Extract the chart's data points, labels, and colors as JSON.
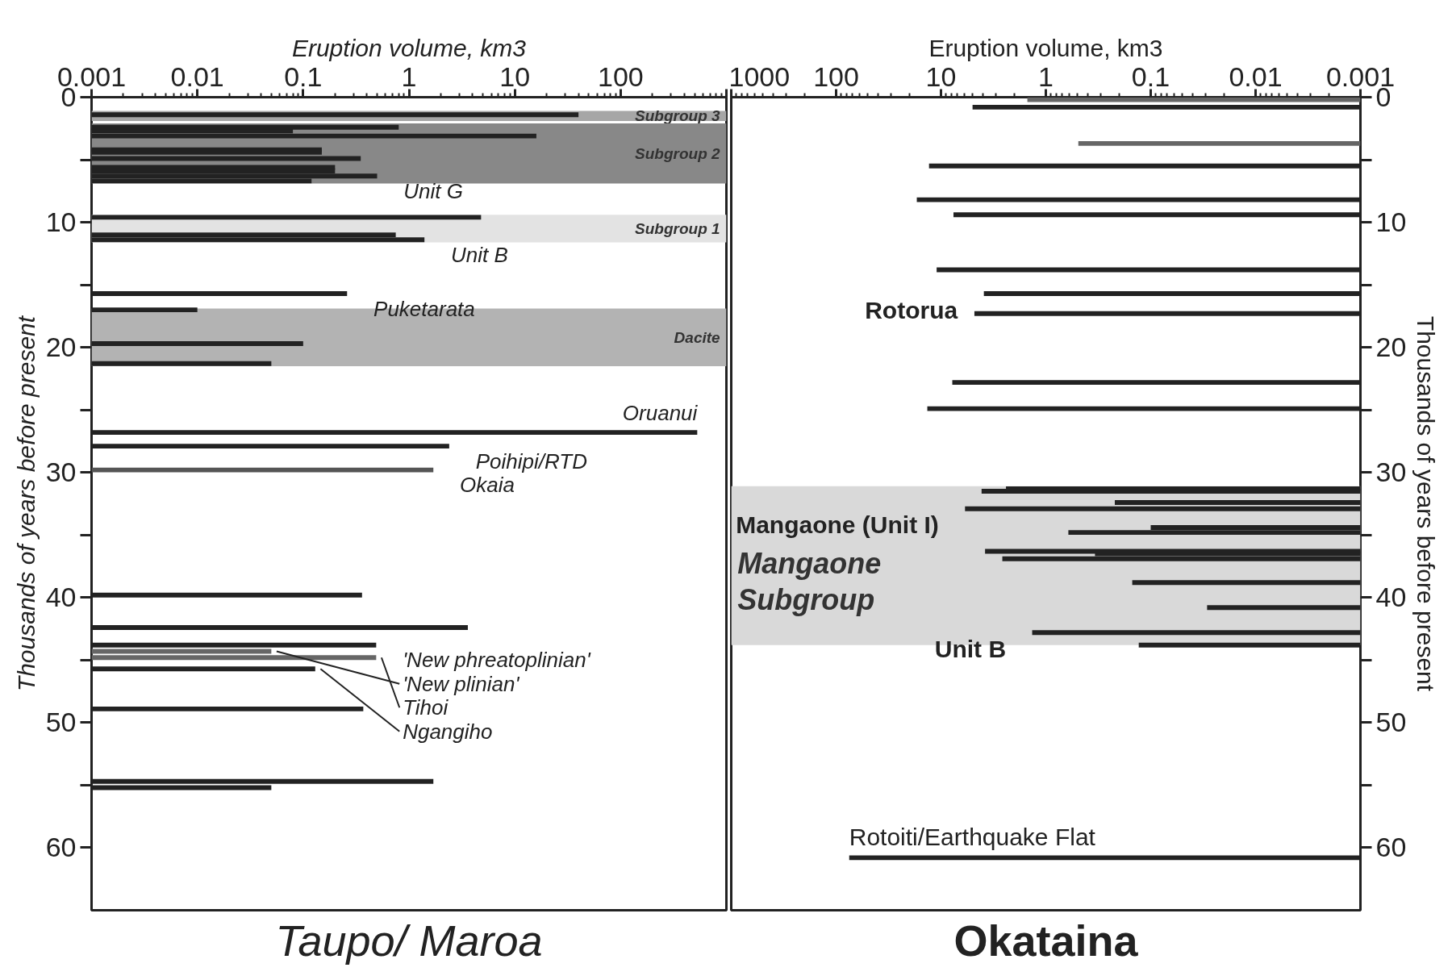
{
  "chart_data": [
    {
      "type": "bar",
      "orientation": "horizontal",
      "log": "x",
      "title": "Taupo/ Maroa",
      "xlabel": "Eruption volume, km3",
      "ylabel": "Thousands of years before present",
      "x": [
        1.4,
        2.4,
        2.7,
        3.1,
        4.2,
        4.4,
        4.9,
        5.6,
        5.9,
        6.3,
        6.7,
        9.6,
        11.0,
        11.4,
        15.7,
        17.0,
        19.7,
        21.3,
        26.8,
        27.9,
        29.8,
        39.8,
        42.4,
        43.8,
        44.3,
        44.8,
        45.7,
        48.9,
        54.7,
        55.2
      ],
      "values": [
        40,
        0.8,
        0.08,
        16,
        0.15,
        0.15,
        0.35,
        0.2,
        0.2,
        0.5,
        0.12,
        4.8,
        0.75,
        1.4,
        0.26,
        0.01,
        0.1,
        0.05,
        530,
        2.4,
        1.7,
        0.36,
        3.6,
        0.49,
        0.05,
        0.49,
        0.13,
        0.37,
        1.7,
        0.05
      ],
      "colors": [
        "#222222",
        "#222222",
        "#222222",
        "#222222",
        "#222222",
        "#222222",
        "#222222",
        "#222222",
        "#222222",
        "#222222",
        "#222222",
        "#222222",
        "#222222",
        "#222222",
        "#222222",
        "#222222",
        "#222222",
        "#222222",
        "#222222",
        "#222222",
        "#555555",
        "#222222",
        "#222222",
        "#222222",
        "#666666",
        "#666666",
        "#222222",
        "#222222",
        "#222222",
        "#222222"
      ],
      "xlim": [
        0.001,
        1000
      ],
      "xticks": [
        0.001,
        0.01,
        0.1,
        1,
        10,
        100,
        {
          "value": 1000,
          "label": null
        }
      ],
      "ylim": [
        65,
        0
      ],
      "yticks": [
        0,
        {
          "value": 5,
          "label": null
        },
        10,
        {
          "value": 15,
          "label": null
        },
        20,
        {
          "value": 25,
          "label": null
        },
        30,
        {
          "value": 35,
          "label": null
        },
        40,
        {
          "value": 45,
          "label": null
        },
        50,
        {
          "value": 55,
          "label": null
        },
        60
      ],
      "bands": [
        {
          "axis": "y",
          "from": 1.1,
          "to": 1.9,
          "label": "Subgroup 3",
          "color": "#a6a6a6"
        },
        {
          "axis": "y",
          "from": 2.1,
          "to": 6.9,
          "label": "Subgroup 2",
          "color": "#888888"
        },
        {
          "axis": "y",
          "from": 9.4,
          "to": 11.6,
          "label": "Subgroup 1",
          "color": "#e3e3e3"
        },
        {
          "axis": "y",
          "from": 16.9,
          "to": 21.5,
          "label": "Dacite",
          "color": "#b3b3b3"
        }
      ],
      "annotations": [
        {
          "text": "Unit G",
          "x": 0.5,
          "y": 6.3
        },
        {
          "text": "Unit B",
          "x": 1.4,
          "y": 11.4
        },
        {
          "text": "Puketarata",
          "x": 0.26,
          "y": 15.7
        },
        {
          "text": "Oruanui",
          "x": 530,
          "y": 26.8
        },
        {
          "text": "Poihipi/RTD",
          "x": 2.4,
          "y": 27.9
        },
        {
          "text": "Okaia",
          "x": 1.7,
          "y": 29.8
        },
        {
          "text": "'New phreatoplinian'",
          "x": 0.49,
          "y": 43.8
        },
        {
          "text": "'New plinian'",
          "x": 0.05,
          "y": 44.3
        },
        {
          "text": "Tihoi",
          "x": 0.49,
          "y": 44.8
        },
        {
          "text": "Ngangiho",
          "x": 0.13,
          "y": 45.7
        }
      ]
    },
    {
      "type": "bar",
      "orientation": "horizontal",
      "log": "x",
      "title": "Okataina",
      "xlabel": "Eruption volume, km3",
      "ylabel": "Thousands of years before present",
      "x": [
        0.2,
        0.8,
        3.7,
        5.5,
        8.2,
        9.4,
        13.8,
        15.7,
        17.3,
        22.8,
        24.9,
        31.3,
        31.5,
        32.4,
        32.9,
        34.4,
        34.8,
        36.3,
        36.5,
        36.9,
        38.8,
        40.8,
        42.8,
        43.8,
        60.8
      ],
      "values": [
        1.5,
        5,
        0.49,
        13,
        17,
        7.6,
        11,
        3.9,
        4.8,
        7.8,
        13.5,
        2.4,
        4.1,
        0.22,
        5.9,
        0.1,
        0.61,
        3.8,
        0.34,
        2.6,
        0.15,
        0.029,
        1.35,
        0.13,
        75
      ],
      "colors": [
        "#666666",
        "#222222",
        "#666666",
        "#222222",
        "#222222",
        "#222222",
        "#222222",
        "#222222",
        "#222222",
        "#222222",
        "#222222",
        "#222222",
        "#222222",
        "#222222",
        "#222222",
        "#222222",
        "#222222",
        "#222222",
        "#222222",
        "#222222",
        "#222222",
        "#222222",
        "#222222",
        "#222222",
        "#222222"
      ],
      "xlim": [
        1000,
        0.001
      ],
      "xticks": [
        1000,
        100,
        10,
        1,
        0.1,
        0.01,
        0.001
      ],
      "ylim": [
        65,
        0
      ],
      "yticks": [
        0,
        {
          "value": 5,
          "label": null
        },
        10,
        {
          "value": 15,
          "label": null
        },
        20,
        {
          "value": 25,
          "label": null
        },
        30,
        {
          "value": 35,
          "label": null
        },
        40,
        {
          "value": 45,
          "label": null
        },
        50,
        {
          "value": 55,
          "label": null
        },
        60
      ],
      "bands": [
        {
          "axis": "y",
          "from": 31.1,
          "to": 43.8,
          "label": "Mangaone\nSubgroup",
          "color": "#d9d9d9"
        }
      ],
      "annotations": [
        {
          "text": "Rotorua",
          "x": 3.9,
          "y": 15.7
        },
        {
          "text": "Mangaone (Unit I)",
          "x": 5.9,
          "y": 32.9
        },
        {
          "text": "Unit B",
          "x": 1.35,
          "y": 42.8
        },
        {
          "text": "Rotoiti/Earthquake Flat",
          "x": 75,
          "y": 60.8
        }
      ]
    }
  ]
}
